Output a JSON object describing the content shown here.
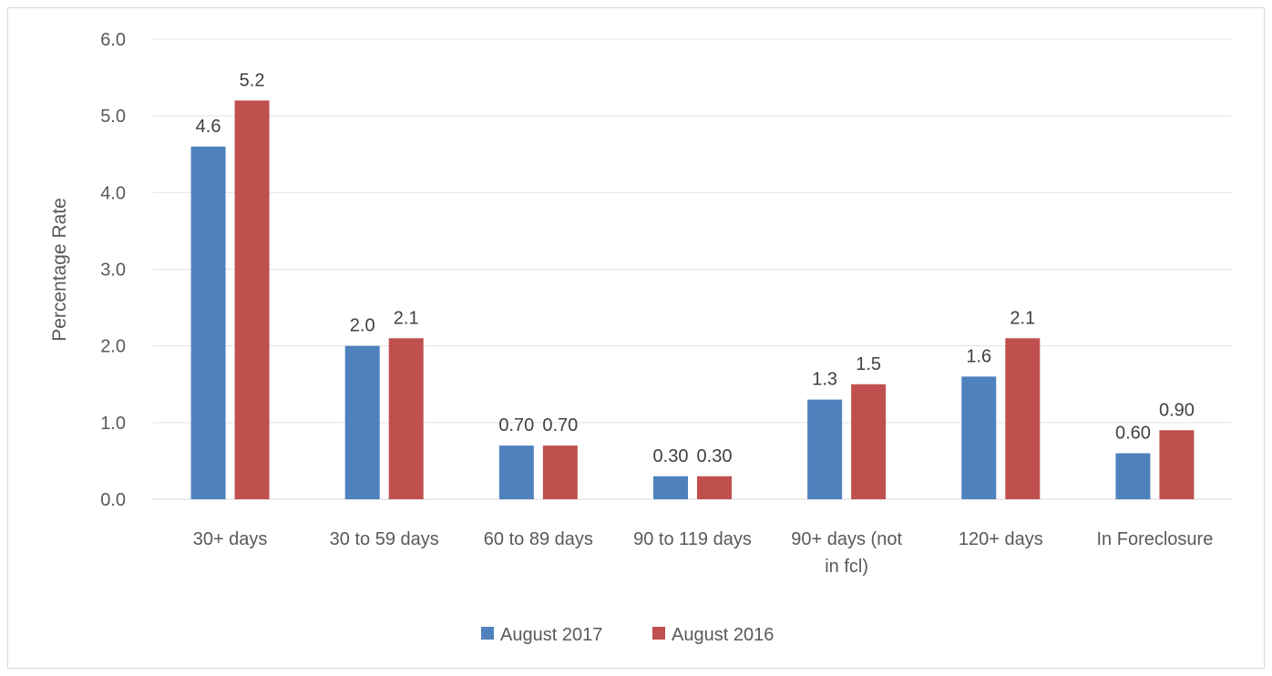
{
  "chart_data": {
    "type": "bar",
    "ylabel": "Percentage Rate",
    "xlabel": "",
    "ylim": [
      0,
      6
    ],
    "yticks": [
      "0.0",
      "1.0",
      "2.0",
      "3.0",
      "4.0",
      "5.0",
      "6.0"
    ],
    "categories": [
      [
        "30+ days"
      ],
      [
        "30 to 59 days"
      ],
      [
        "60 to 89 days"
      ],
      [
        "90 to 119 days"
      ],
      [
        "90+ days (not",
        "in fcl)"
      ],
      [
        "120+ days"
      ],
      [
        "In Foreclosure"
      ]
    ],
    "series": [
      {
        "name": "August 2017",
        "color": "#4f81bd",
        "values": [
          4.6,
          2.0,
          0.7,
          0.3,
          1.3,
          1.6,
          0.6
        ],
        "labels": [
          "4.6",
          "2.0",
          "0.70",
          "0.30",
          "1.3",
          "1.6",
          "0.60"
        ]
      },
      {
        "name": "August 2016",
        "color": "#c0504d",
        "values": [
          5.2,
          2.1,
          0.7,
          0.3,
          1.5,
          2.1,
          0.9
        ],
        "labels": [
          "5.2",
          "2.1",
          "0.70",
          "0.30",
          "1.5",
          "2.1",
          "0.90"
        ]
      }
    ],
    "grid": true,
    "legend_position": "bottom"
  }
}
